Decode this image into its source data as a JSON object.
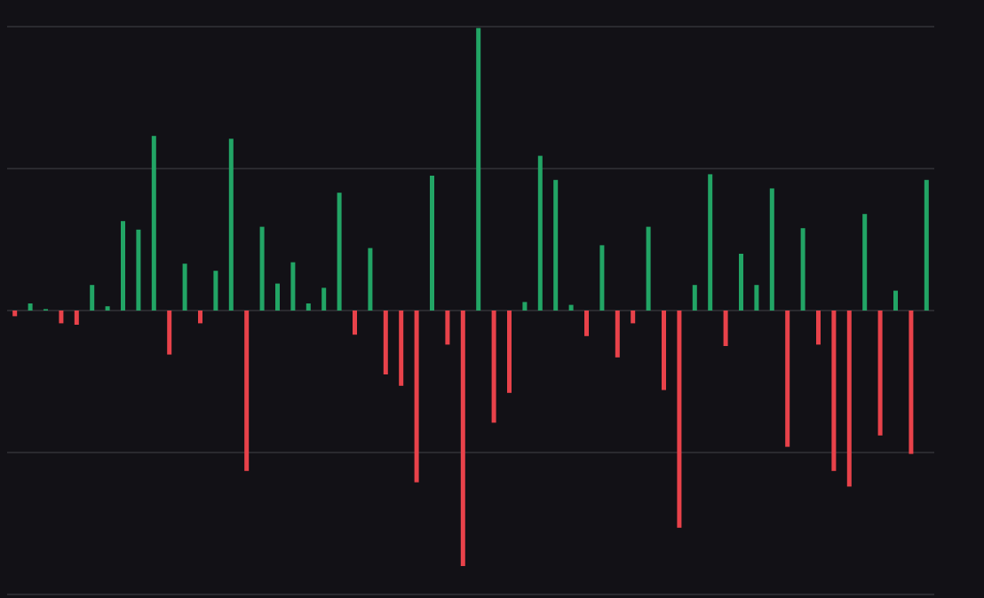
{
  "chart_data": {
    "type": "bar",
    "categories": [
      null,
      null,
      null,
      null,
      null,
      null,
      null,
      null,
      null,
      null,
      null,
      null,
      null,
      null,
      null,
      null,
      null,
      null,
      null,
      null,
      null,
      null,
      null,
      null,
      null,
      null,
      null,
      null,
      null,
      null,
      null,
      null,
      null,
      null,
      null,
      null,
      null,
      null,
      null,
      null,
      null,
      null,
      null,
      null,
      null,
      null,
      null,
      null,
      null,
      null,
      null,
      null,
      null,
      null,
      null,
      null,
      null,
      null,
      null,
      null
    ],
    "values": [
      -0.04,
      0.05,
      0.01,
      -0.09,
      -0.1,
      0.18,
      0.03,
      0.63,
      0.57,
      1.23,
      -0.31,
      0.33,
      -0.09,
      0.28,
      1.21,
      -1.13,
      0.59,
      0.19,
      0.34,
      0.05,
      0.16,
      0.83,
      -0.17,
      0.44,
      -0.45,
      -0.53,
      -1.21,
      0.95,
      -0.24,
      -1.8,
      1.99,
      -0.79,
      -0.58,
      0.06,
      1.09,
      0.92,
      0.04,
      -0.18,
      0.46,
      -0.33,
      -0.09,
      0.59,
      -0.56,
      -1.53,
      0.18,
      0.96,
      -0.25,
      0.4,
      0.18,
      0.86,
      -0.96,
      0.58,
      -0.24,
      -1.13,
      -1.24,
      0.68,
      -0.88,
      0.14,
      -1.01,
      0.92
    ],
    "positive_color": "#22a565",
    "negative_color": "#e8424a",
    "ylim": [
      -2,
      2
    ],
    "yticks": [
      -2,
      -1,
      0,
      1,
      2
    ],
    "grid": true,
    "grid_color": "#2a2a2f"
  }
}
